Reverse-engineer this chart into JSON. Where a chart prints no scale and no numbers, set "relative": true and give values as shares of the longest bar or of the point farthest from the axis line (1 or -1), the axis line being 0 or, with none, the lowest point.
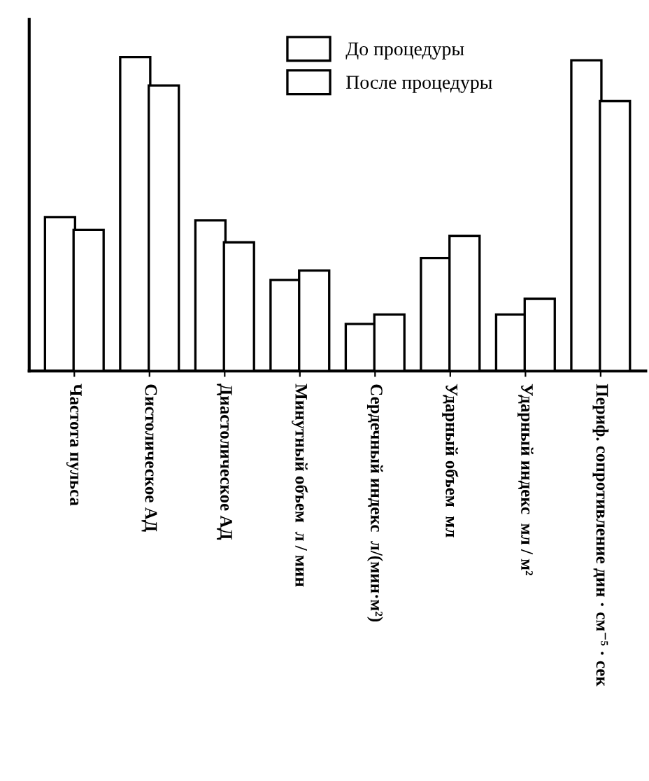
{
  "chart_data": {
    "type": "bar",
    "relative": true,
    "legend": "top right",
    "categories": [
      "Частота пульса",
      "Систолическое АД",
      "Диастолическое АД",
      "Минутный объем  л / мин",
      "Сердечный индекс  л/(мин·м²)",
      "Ударный объем  мл",
      "Ударный индекс  мл / м²",
      "Периф. сопротивление дин · см⁻⁵ · сек"
    ],
    "series": [
      {
        "name": "До процедуры",
        "color": "#ffffff",
        "values": [
          0.49,
          1.0,
          0.48,
          0.29,
          0.15,
          0.36,
          0.18,
          0.99
        ]
      },
      {
        "name": "После процедуры",
        "color": "#ffffff",
        "values": [
          0.45,
          0.91,
          0.41,
          0.32,
          0.18,
          0.43,
          0.23,
          0.86
        ]
      }
    ]
  }
}
